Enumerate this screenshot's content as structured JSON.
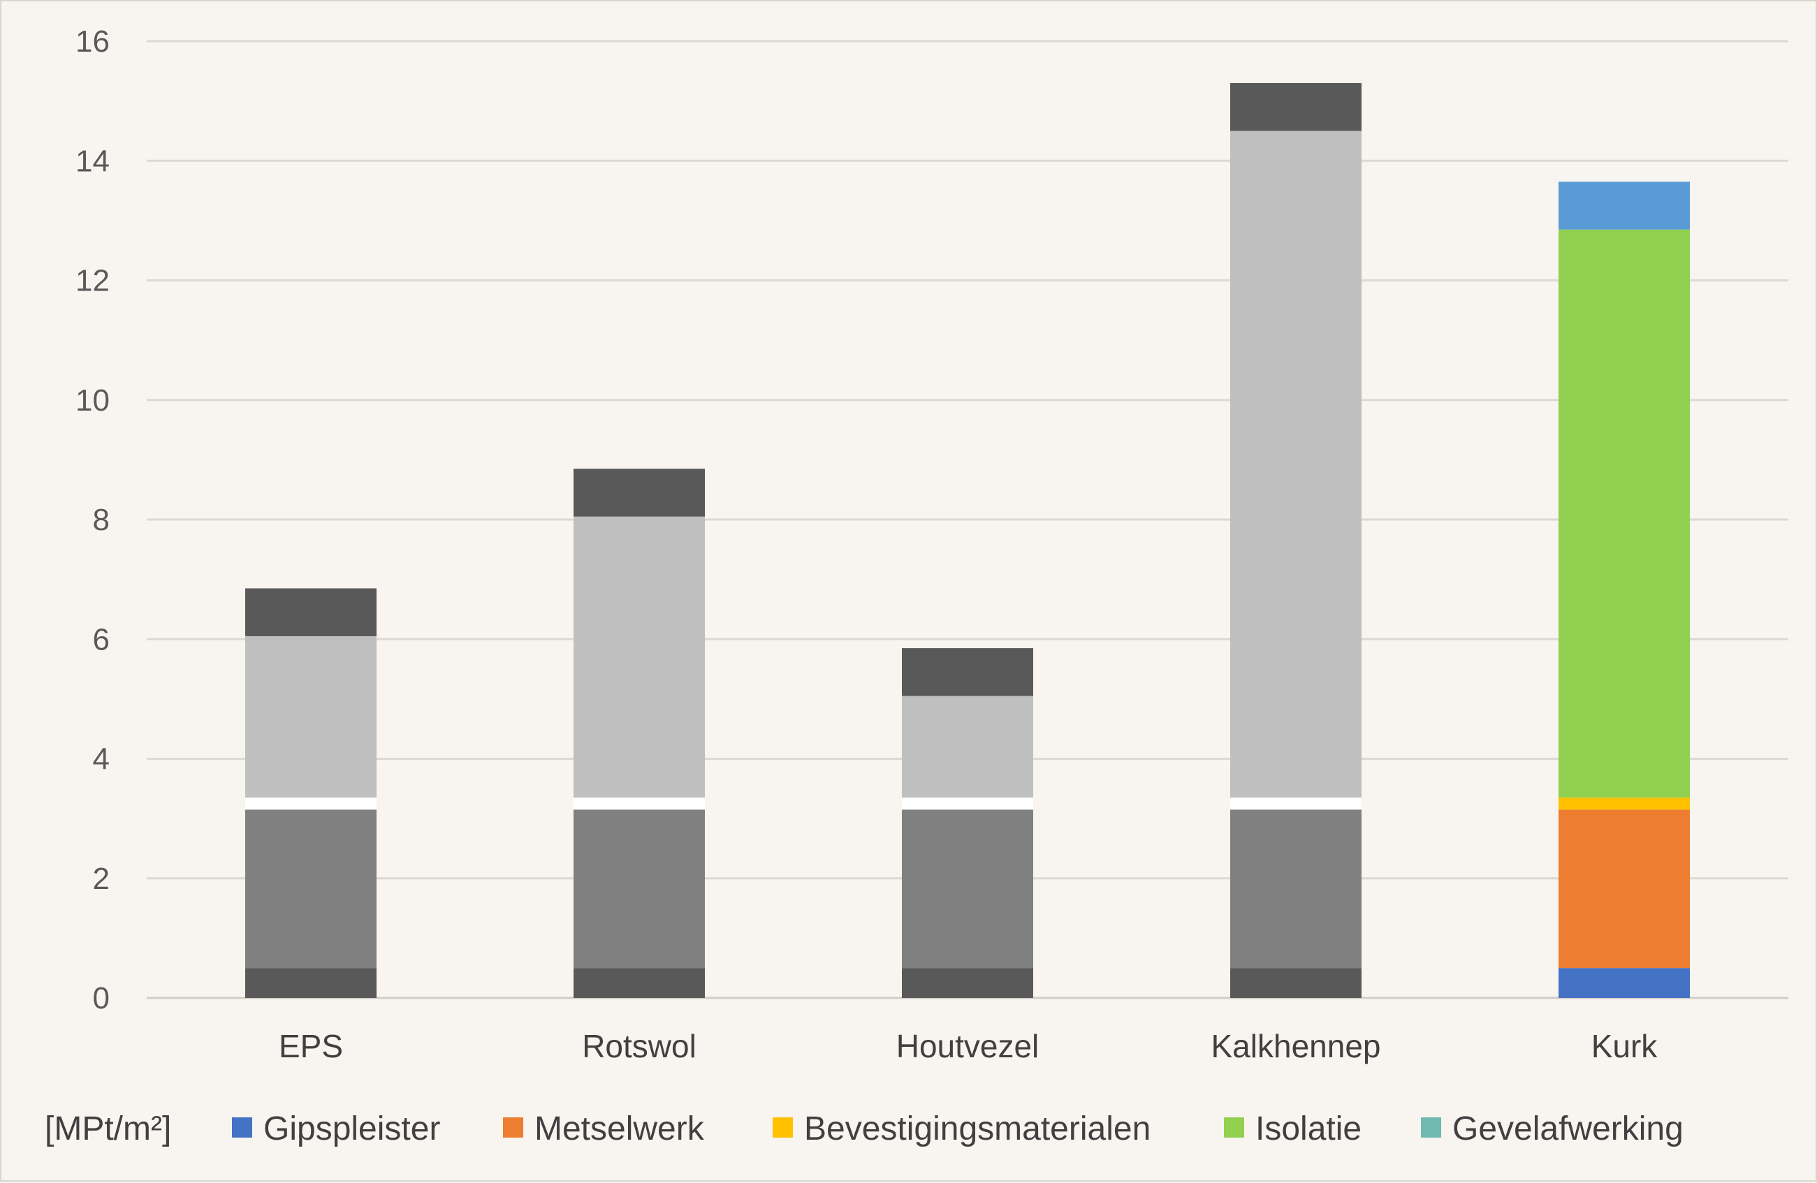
{
  "chart_data": {
    "type": "bar",
    "stacked": true,
    "title": "",
    "xlabel": "",
    "ylabel": "",
    "unit_label": "[MPt/m²]",
    "ylim": [
      0,
      16
    ],
    "yticks": [
      0,
      2,
      4,
      6,
      8,
      10,
      12,
      14,
      16
    ],
    "grid": true,
    "legend_position": "bottom",
    "categories": [
      "EPS",
      "Rotswol",
      "Houtvezel",
      "Kalkhennep",
      "Kurk"
    ],
    "series": [
      {
        "name": "Gipspleister",
        "color": "#4472c4",
        "values": [
          0.5,
          0.5,
          0.5,
          0.5,
          0.5
        ]
      },
      {
        "name": "Metselwerk",
        "color": "#ed7d31",
        "values": [
          2.65,
          2.65,
          2.65,
          2.65,
          2.65
        ]
      },
      {
        "name": "Bevestigingsmaterialen",
        "color": "#ffc000",
        "values": [
          0.2,
          0.2,
          0.2,
          0.2,
          0.2
        ]
      },
      {
        "name": "Isolatie",
        "color": "#92d050",
        "values": [
          2.7,
          4.7,
          1.7,
          11.15,
          9.5
        ]
      },
      {
        "name": "Gevelafwerking",
        "color": "#5b9bd5",
        "values": [
          0.8,
          0.8,
          0.8,
          0.8,
          0.8
        ]
      }
    ],
    "legend_swatch_colors": [
      "#4472c4",
      "#ed7d31",
      "#ffc000",
      "#92d050",
      "#70b8b0"
    ],
    "grey_series_colors": [
      "#595959",
      "#808080",
      "#ffffff",
      "#bfbfbf",
      "#595959"
    ],
    "colored_category": "Kurk"
  }
}
